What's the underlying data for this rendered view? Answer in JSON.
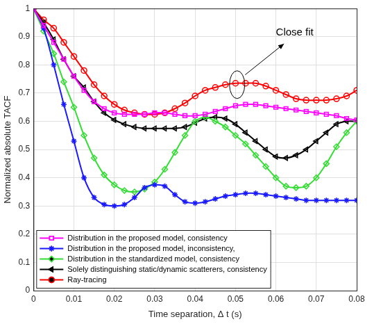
{
  "chart_data": {
    "type": "line",
    "x_label": "Time separation, Δ t (s)",
    "y_label": "Normalized absolute TACF",
    "annotation": "Close fit",
    "x": [
      0,
      0.0025,
      0.005,
      0.0075,
      0.01,
      0.0125,
      0.015,
      0.0175,
      0.02,
      0.0225,
      0.025,
      0.0275,
      0.03,
      0.0325,
      0.035,
      0.0375,
      0.04,
      0.0425,
      0.045,
      0.0475,
      0.05,
      0.0525,
      0.055,
      0.0575,
      0.06,
      0.0625,
      0.065,
      0.0675,
      0.07,
      0.0725,
      0.075,
      0.0775,
      0.08
    ],
    "series": [
      {
        "name": "Distribution in the proposed model, consistency",
        "color": "#ff00ff",
        "marker": "square",
        "line_style": "solid",
        "values": [
          1,
          0.94,
          0.88,
          0.82,
          0.76,
          0.71,
          0.67,
          0.645,
          0.63,
          0.625,
          0.625,
          0.625,
          0.63,
          0.63,
          0.625,
          0.62,
          0.62,
          0.625,
          0.635,
          0.645,
          0.655,
          0.66,
          0.66,
          0.655,
          0.65,
          0.645,
          0.64,
          0.635,
          0.63,
          0.625,
          0.62,
          0.61,
          0.605
        ]
      },
      {
        "name": "Distribution in the proposed model, inconsistency,",
        "color": "#1a1aff",
        "marker": "asterisk",
        "line_style": "solid",
        "values": [
          1,
          0.93,
          0.8,
          0.66,
          0.53,
          0.4,
          0.33,
          0.305,
          0.3,
          0.305,
          0.33,
          0.365,
          0.375,
          0.37,
          0.34,
          0.315,
          0.31,
          0.315,
          0.325,
          0.335,
          0.34,
          0.345,
          0.345,
          0.34,
          0.335,
          0.33,
          0.325,
          0.32,
          0.32,
          0.32,
          0.32,
          0.32,
          0.32
        ]
      },
      {
        "name": "Distribution in the standardized model, consistency",
        "color": "#33dd33",
        "marker": "diamond",
        "line_style": "solid",
        "values": [
          1,
          0.92,
          0.84,
          0.74,
          0.65,
          0.55,
          0.47,
          0.41,
          0.375,
          0.355,
          0.35,
          0.36,
          0.385,
          0.43,
          0.49,
          0.55,
          0.6,
          0.615,
          0.6,
          0.58,
          0.55,
          0.52,
          0.48,
          0.44,
          0.4,
          0.37,
          0.365,
          0.37,
          0.4,
          0.45,
          0.51,
          0.56,
          0.6
        ]
      },
      {
        "name": "Solely distinguishing static/dynamic scatterers, consistency",
        "color": "#000000",
        "marker": "triangle-left",
        "line_style": "solid",
        "values": [
          1,
          0.95,
          0.89,
          0.82,
          0.76,
          0.72,
          0.67,
          0.63,
          0.605,
          0.59,
          0.58,
          0.575,
          0.575,
          0.575,
          0.575,
          0.58,
          0.595,
          0.61,
          0.615,
          0.61,
          0.59,
          0.56,
          0.53,
          0.5,
          0.475,
          0.47,
          0.48,
          0.5,
          0.53,
          0.56,
          0.59,
          0.6,
          0.6
        ]
      },
      {
        "name": "Ray-tracing",
        "color": "#ff0000",
        "marker": "circle",
        "line_style": "solid",
        "values": [
          1,
          0.96,
          0.93,
          0.88,
          0.83,
          0.78,
          0.73,
          0.69,
          0.66,
          0.64,
          0.63,
          0.625,
          0.625,
          0.63,
          0.645,
          0.665,
          0.69,
          0.71,
          0.72,
          0.73,
          0.735,
          0.735,
          0.735,
          0.725,
          0.71,
          0.695,
          0.68,
          0.675,
          0.675,
          0.675,
          0.68,
          0.69,
          0.71
        ]
      }
    ],
    "xlim": [
      0,
      0.08
    ],
    "xticks": [
      0,
      0.01,
      0.02,
      0.03,
      0.04,
      0.05,
      0.06,
      0.07,
      0.08
    ],
    "ylim": [
      0,
      1
    ],
    "yticks": [
      0,
      0.1,
      0.2,
      0.3,
      0.4,
      0.5,
      0.6,
      0.7,
      0.8,
      0.9,
      1
    ],
    "grid": true,
    "legend": "lower left"
  }
}
